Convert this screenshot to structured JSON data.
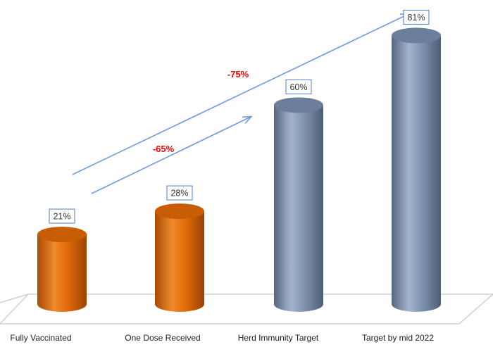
{
  "chart_data": {
    "type": "bar",
    "style": "3d-cylinder",
    "categories": [
      "Fully Vaccinated",
      "One Dose Received",
      "Herd Immunity Target",
      "Target by mid 2022"
    ],
    "values": [
      21,
      28,
      60,
      81
    ],
    "value_labels": [
      "21%",
      "28%",
      "60%",
      "81%"
    ],
    "title": "",
    "xlabel": "",
    "ylabel": "",
    "ylim": [
      0,
      90
    ],
    "grid": false,
    "legend": "none",
    "colors": {
      "current": "#e46c0a",
      "target": "#7f93b0",
      "arrow": "#6f9be0",
      "annotation": "#ff0000",
      "label_border": "#4f7ec5"
    },
    "bar_groups": [
      "current",
      "current",
      "target",
      "target"
    ],
    "annotations": [
      {
        "text": "-75%",
        "from_category": 0,
        "to_category": 3
      },
      {
        "text": "-65%",
        "from_category": 0,
        "to_category": 2
      }
    ]
  }
}
